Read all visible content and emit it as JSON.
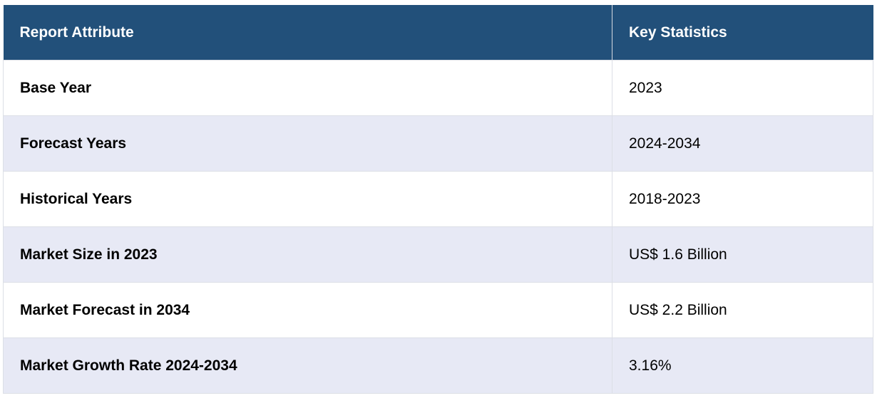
{
  "table": {
    "headers": {
      "attribute": "Report Attribute",
      "statistics": "Key Statistics"
    },
    "rows": [
      {
        "attribute": "Base Year",
        "value": "2023"
      },
      {
        "attribute": "Forecast Years",
        "value": "2024-2034"
      },
      {
        "attribute": "Historical Years",
        "value": "2018-2023"
      },
      {
        "attribute": "Market Size in 2023",
        "value": "US$ 1.6 Billion"
      },
      {
        "attribute": "Market Forecast in 2034",
        "value": "US$ 2.2 Billion"
      },
      {
        "attribute": "Market Growth Rate 2024-2034",
        "value": "3.16%"
      }
    ]
  },
  "colors": {
    "header_bg": "#22507a",
    "header_text": "#ffffff",
    "row_alt_bg": "#e7e9f5",
    "row_bg": "#ffffff"
  }
}
